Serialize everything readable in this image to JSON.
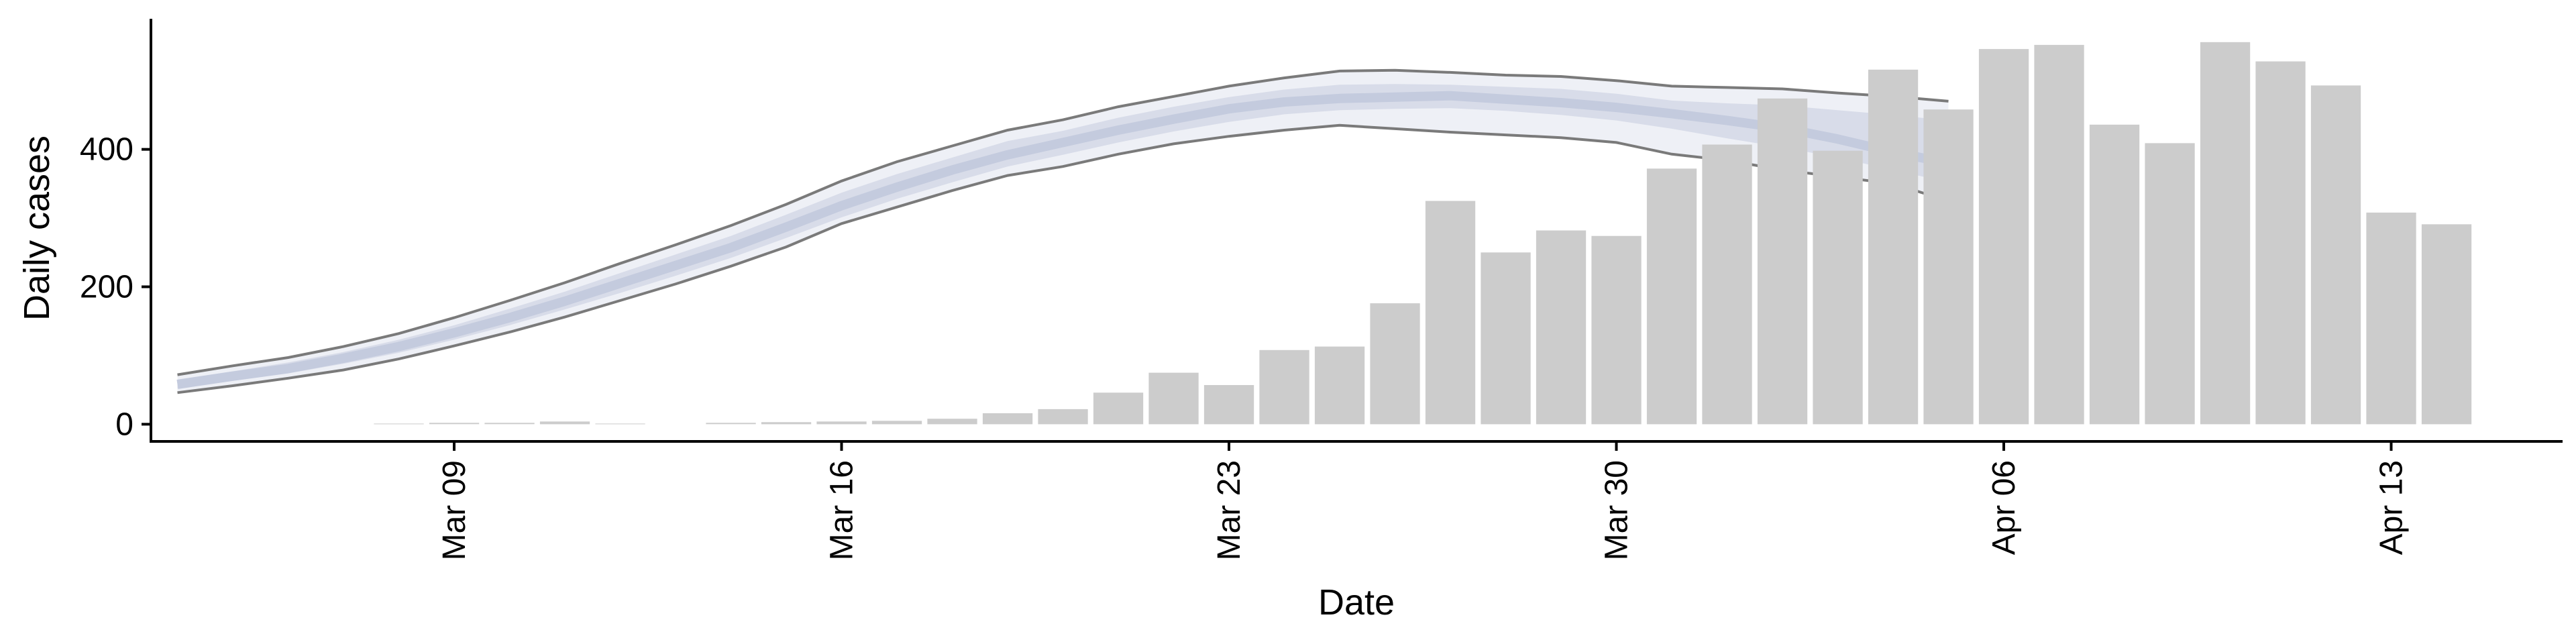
{
  "chart_data": {
    "type": "bar",
    "title": "",
    "xlabel": "Date",
    "ylabel": "Daily cases",
    "x_range": [
      "2020-03-02",
      "2020-04-17"
    ],
    "ylim": [
      -25,
      590
    ],
    "x_ticks": [
      "2020-03-09",
      "2020-03-16",
      "2020-03-23",
      "2020-03-30",
      "2020-04-06",
      "2020-04-13"
    ],
    "x_tick_labels": [
      "Mar 09",
      "Mar 16",
      "Mar 23",
      "Mar 30",
      "Apr 06",
      "Apr 13"
    ],
    "y_ticks": [
      0,
      200,
      400
    ],
    "y_tick_labels": [
      "0",
      "200",
      "400"
    ],
    "grid": false,
    "legend": "none",
    "colors": {
      "bars": "#cccccc",
      "band_outer": "#eef0f6",
      "band_inner": "#d8dce9",
      "median": "#c4cbde",
      "band_edge": "#7a7a7a",
      "axis": "#000000"
    },
    "bars": {
      "dates": [
        "2020-03-08",
        "2020-03-09",
        "2020-03-10",
        "2020-03-11",
        "2020-03-12",
        "2020-03-13",
        "2020-03-14",
        "2020-03-15",
        "2020-03-16",
        "2020-03-17",
        "2020-03-18",
        "2020-03-19",
        "2020-03-20",
        "2020-03-21",
        "2020-03-22",
        "2020-03-23",
        "2020-03-24",
        "2020-03-25",
        "2020-03-26",
        "2020-03-27",
        "2020-03-28",
        "2020-03-29",
        "2020-03-30",
        "2020-03-31",
        "2020-04-01",
        "2020-04-02",
        "2020-04-03",
        "2020-04-04",
        "2020-04-05",
        "2020-04-06",
        "2020-04-07",
        "2020-04-08",
        "2020-04-09",
        "2020-04-10",
        "2020-04-11",
        "2020-04-12",
        "2020-04-13",
        "2020-04-14"
      ],
      "values": [
        1,
        2,
        2,
        4,
        1,
        0,
        2,
        3,
        4,
        5,
        8,
        16,
        22,
        46,
        75,
        57,
        108,
        113,
        176,
        325,
        250,
        282,
        274,
        372,
        407,
        474,
        398,
        516,
        458,
        546,
        552,
        436,
        409,
        556,
        528,
        493,
        308,
        291
      ]
    },
    "estimate": {
      "dates": [
        "2020-03-04",
        "2020-03-05",
        "2020-03-06",
        "2020-03-07",
        "2020-03-08",
        "2020-03-09",
        "2020-03-10",
        "2020-03-11",
        "2020-03-12",
        "2020-03-13",
        "2020-03-14",
        "2020-03-15",
        "2020-03-16",
        "2020-03-17",
        "2020-03-18",
        "2020-03-19",
        "2020-03-20",
        "2020-03-21",
        "2020-03-22",
        "2020-03-23",
        "2020-03-24",
        "2020-03-25",
        "2020-03-26",
        "2020-03-27",
        "2020-03-28",
        "2020-03-29",
        "2020-03-30",
        "2020-03-31",
        "2020-04-01",
        "2020-04-02",
        "2020-04-03",
        "2020-04-04",
        "2020-04-05"
      ],
      "upper": [
        72,
        85,
        97,
        113,
        132,
        155,
        180,
        206,
        234,
        261,
        289,
        320,
        354,
        382,
        405,
        428,
        443,
        462,
        477,
        492,
        504,
        514,
        515,
        512,
        508,
        506,
        500,
        492,
        490,
        488,
        482,
        477,
        470
      ],
      "inner_upper": [
        65,
        77,
        90,
        105,
        123,
        144,
        168,
        193,
        220,
        247,
        274,
        305,
        337,
        364,
        388,
        412,
        427,
        446,
        462,
        476,
        487,
        494,
        495,
        494,
        491,
        488,
        481,
        471,
        467,
        464,
        457,
        450,
        442
      ],
      "median": [
        58,
        70,
        81,
        96,
        113,
        133,
        155,
        179,
        205,
        231,
        257,
        287,
        318,
        345,
        370,
        392,
        410,
        428,
        444,
        459,
        469,
        474,
        476,
        478,
        473,
        468,
        461,
        452,
        442,
        431,
        415,
        396,
        380
      ],
      "inner_lower": [
        52,
        63,
        74,
        88,
        104,
        123,
        144,
        167,
        191,
        216,
        242,
        271,
        301,
        328,
        352,
        375,
        392,
        410,
        426,
        440,
        451,
        457,
        459,
        460,
        456,
        450,
        442,
        430,
        416,
        403,
        388,
        370,
        352
      ],
      "lower": [
        46,
        56,
        67,
        79,
        95,
        114,
        134,
        156,
        180,
        204,
        230,
        258,
        292,
        316,
        340,
        362,
        375,
        393,
        408,
        419,
        428,
        435,
        430,
        425,
        421,
        417,
        410,
        393,
        384,
        370,
        360,
        350,
        325
      ]
    }
  }
}
